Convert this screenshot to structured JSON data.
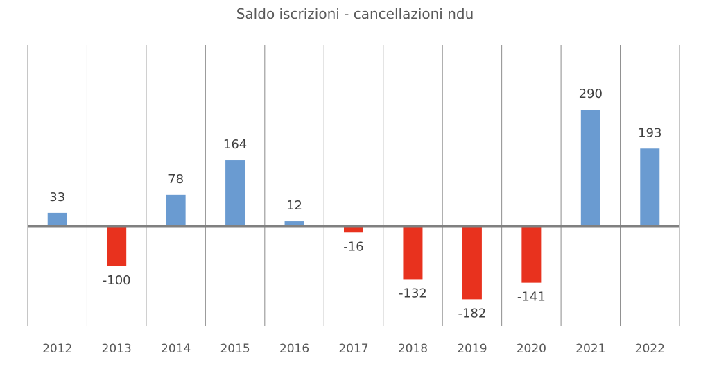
{
  "chart_data": {
    "type": "bar",
    "title": "Saldo iscrizioni - cancellazioni ndu",
    "categories": [
      "2012",
      "2013",
      "2014",
      "2015",
      "2016",
      "2017",
      "2018",
      "2019",
      "2020",
      "2021",
      "2022"
    ],
    "values": [
      33,
      -100,
      78,
      164,
      12,
      -16,
      -132,
      -182,
      -141,
      290,
      193
    ],
    "ylim": [
      -250,
      460
    ],
    "grid": "vertical",
    "legend": "none",
    "colors": {
      "positive": "#6a9bd1",
      "negative": "#e8321e",
      "axis": "#808080",
      "grid": "#8c8c8c"
    }
  }
}
